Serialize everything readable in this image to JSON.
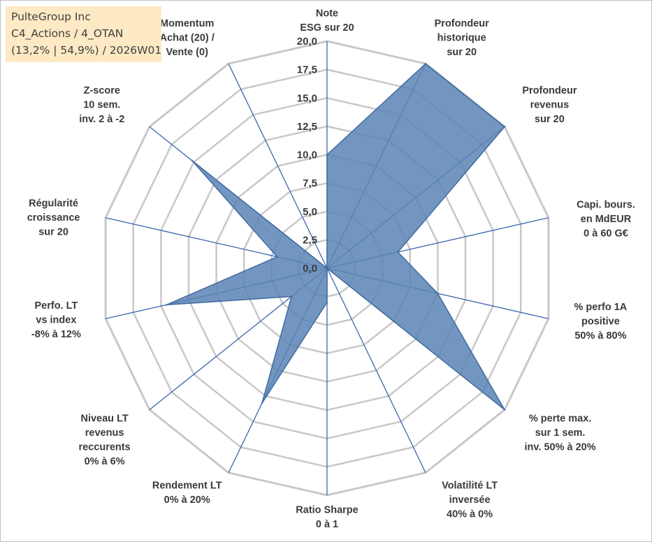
{
  "title_lines": [
    "PulteGroup Inc",
    "C4_Actions / 4_OTAN",
    "(13,2% | 54,9%) / 2026W01"
  ],
  "colors": {
    "fill": "#5b84b5",
    "stroke": "#3f6aa0",
    "spoke": "#3c66b0",
    "grid": "#c8c8c8",
    "text": "#3a3a3a",
    "title_bg": "#fde9c4"
  },
  "chart_data": {
    "type": "radar",
    "range": [
      0,
      20
    ],
    "tick_step": 2.5,
    "tick_labels": [
      "0,0",
      "2,5",
      "5,0",
      "7,5",
      "10,0",
      "12,5",
      "15,0",
      "17,5",
      "20,0"
    ],
    "axes": [
      {
        "label": [
          "Note",
          "ESG sur 20"
        ],
        "value": 10.0
      },
      {
        "label": [
          "Profondeur",
          "historique",
          "sur 20"
        ],
        "value": 20.0
      },
      {
        "label": [
          "Profondeur",
          "revenus",
          "sur 20"
        ],
        "value": 20.0
      },
      {
        "label": [
          "Capi. bours.",
          "en MdEUR",
          "0 à 60 G€"
        ],
        "value": 6.4
      },
      {
        "label": [
          "% perfo 1A",
          "positive",
          "50% à 80%"
        ],
        "value": 10.0
      },
      {
        "label": [
          "% perte max.",
          "sur 1 sem.",
          "inv. 50% à 20%"
        ],
        "value": 20.0
      },
      {
        "label": [
          "Volatilité LT",
          "inversée",
          "40% à 0%"
        ],
        "value": 0.0
      },
      {
        "label": [
          "Ratio Sharpe",
          "0 à 1"
        ],
        "value": 3.0
      },
      {
        "label": [
          "Rendement LT",
          "0% à 20%"
        ],
        "value": 13.2
      },
      {
        "label": [
          "Niveau LT",
          "revenus",
          "reccurents",
          "0% à 6%"
        ],
        "value": 4.0
      },
      {
        "label": [
          "Perfo. LT",
          "vs index",
          "-8% à 12%"
        ],
        "value": 14.5
      },
      {
        "label": [
          "Régularité",
          "croissance",
          "sur 20"
        ],
        "value": 4.5
      },
      {
        "label": [
          "Z-score",
          "10 sem.",
          "inv. 2 à -2"
        ],
        "value": 15.2
      },
      {
        "label": [
          "Momentum",
          "Achat (20) /",
          "Vente (0)"
        ],
        "value": 0.0
      }
    ]
  }
}
